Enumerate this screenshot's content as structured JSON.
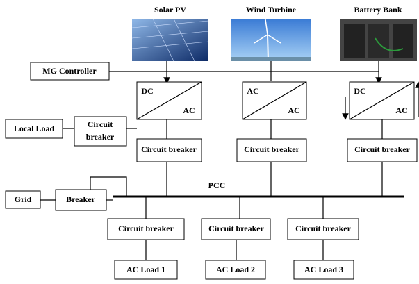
{
  "sources": [
    {
      "label": "Solar PV"
    },
    {
      "label": "Wind Turbine"
    },
    {
      "label": "Battery Bank"
    }
  ],
  "controller": "MG Controller",
  "converters": [
    {
      "input": "DC",
      "output": "AC"
    },
    {
      "input": "AC",
      "output": "AC"
    },
    {
      "input": "DC",
      "output": "AC"
    }
  ],
  "source_breakers": [
    "Circuit breaker",
    "Circuit breaker",
    "Circuit breaker"
  ],
  "local_load": "Local Load",
  "local_breaker": [
    "Circuit",
    "breaker"
  ],
  "pcc": "PCC",
  "grid": "Grid",
  "grid_breaker": "Breaker",
  "load_breakers": [
    "Circuit breaker",
    "Circuit breaker",
    "Circuit breaker"
  ],
  "loads": [
    "AC Load 1",
    "AC Load 2",
    "AC Load 3"
  ]
}
